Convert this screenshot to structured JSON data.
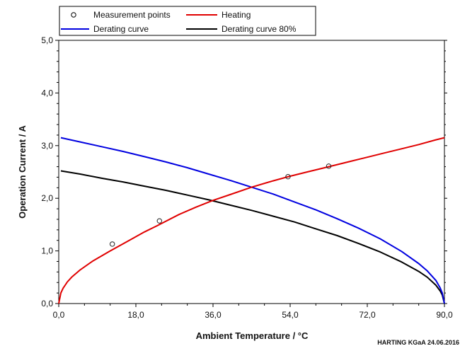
{
  "chart_data": {
    "type": "line",
    "xlabel": "Ambient Temperature / °C",
    "ylabel": "Operation Current / A",
    "xlim": [
      0,
      90
    ],
    "ylim": [
      0,
      5
    ],
    "x_ticks": [
      "0,0",
      "18,0",
      "36,0",
      "54,0",
      "72,0",
      "90,0"
    ],
    "x_tick_values": [
      0,
      18,
      36,
      54,
      72,
      90
    ],
    "y_ticks": [
      "0,0",
      "1,0",
      "2,0",
      "3,0",
      "4,0",
      "5,0"
    ],
    "y_tick_values": [
      0,
      1,
      2,
      3,
      4,
      5
    ],
    "grid": false,
    "legend_position": "top",
    "credit": "HARTING KGaA 24.06.2016",
    "legend": [
      {
        "label": "Measurement points",
        "marker": "circle"
      },
      {
        "label": "Heating",
        "color": "#e00000"
      },
      {
        "label": "Derating curve",
        "color": "#0000e0"
      },
      {
        "label": "Derating curve 80%",
        "color": "#000000"
      }
    ],
    "series": [
      {
        "name": "Heating",
        "color": "#e00000",
        "x": [
          0,
          0.5,
          1,
          2,
          3,
          5,
          8,
          12,
          16,
          20,
          23,
          28,
          32,
          36,
          40,
          45,
          50,
          54,
          58,
          63,
          68,
          72,
          76,
          80,
          84,
          88,
          90
        ],
        "y": [
          0,
          0.2,
          0.29,
          0.41,
          0.5,
          0.64,
          0.81,
          1.0,
          1.18,
          1.36,
          1.48,
          1.69,
          1.83,
          1.96,
          2.07,
          2.21,
          2.33,
          2.42,
          2.5,
          2.6,
          2.7,
          2.78,
          2.86,
          2.94,
          3.02,
          3.11,
          3.15
        ]
      },
      {
        "name": "Derating curve",
        "color": "#0000e0",
        "x": [
          0.5,
          5,
          10,
          15,
          20,
          25,
          30,
          35,
          40,
          45,
          50,
          55,
          60,
          65,
          70,
          75,
          80,
          84,
          86,
          88,
          89,
          89.5,
          90
        ],
        "y": [
          3.15,
          3.07,
          2.98,
          2.89,
          2.79,
          2.69,
          2.58,
          2.46,
          2.34,
          2.21,
          2.08,
          1.93,
          1.78,
          1.61,
          1.43,
          1.23,
          0.99,
          0.76,
          0.62,
          0.44,
          0.3,
          0.2,
          0.0
        ]
      },
      {
        "name": "Derating curve 80%",
        "color": "#000000",
        "x": [
          0.5,
          5,
          10,
          15,
          20,
          25,
          30,
          35,
          40,
          45,
          50,
          55,
          60,
          65,
          70,
          75,
          80,
          84,
          86,
          88,
          89,
          89.5,
          90
        ],
        "y": [
          2.52,
          2.46,
          2.38,
          2.31,
          2.23,
          2.15,
          2.06,
          1.97,
          1.87,
          1.77,
          1.66,
          1.55,
          1.42,
          1.29,
          1.14,
          0.98,
          0.79,
          0.61,
          0.5,
          0.35,
          0.24,
          0.16,
          0.0
        ]
      }
    ],
    "measurement_points": {
      "name": "Measurement points",
      "x": [
        12.5,
        23.5,
        53.5,
        63
      ],
      "y": [
        1.13,
        1.57,
        2.41,
        2.61
      ]
    }
  }
}
